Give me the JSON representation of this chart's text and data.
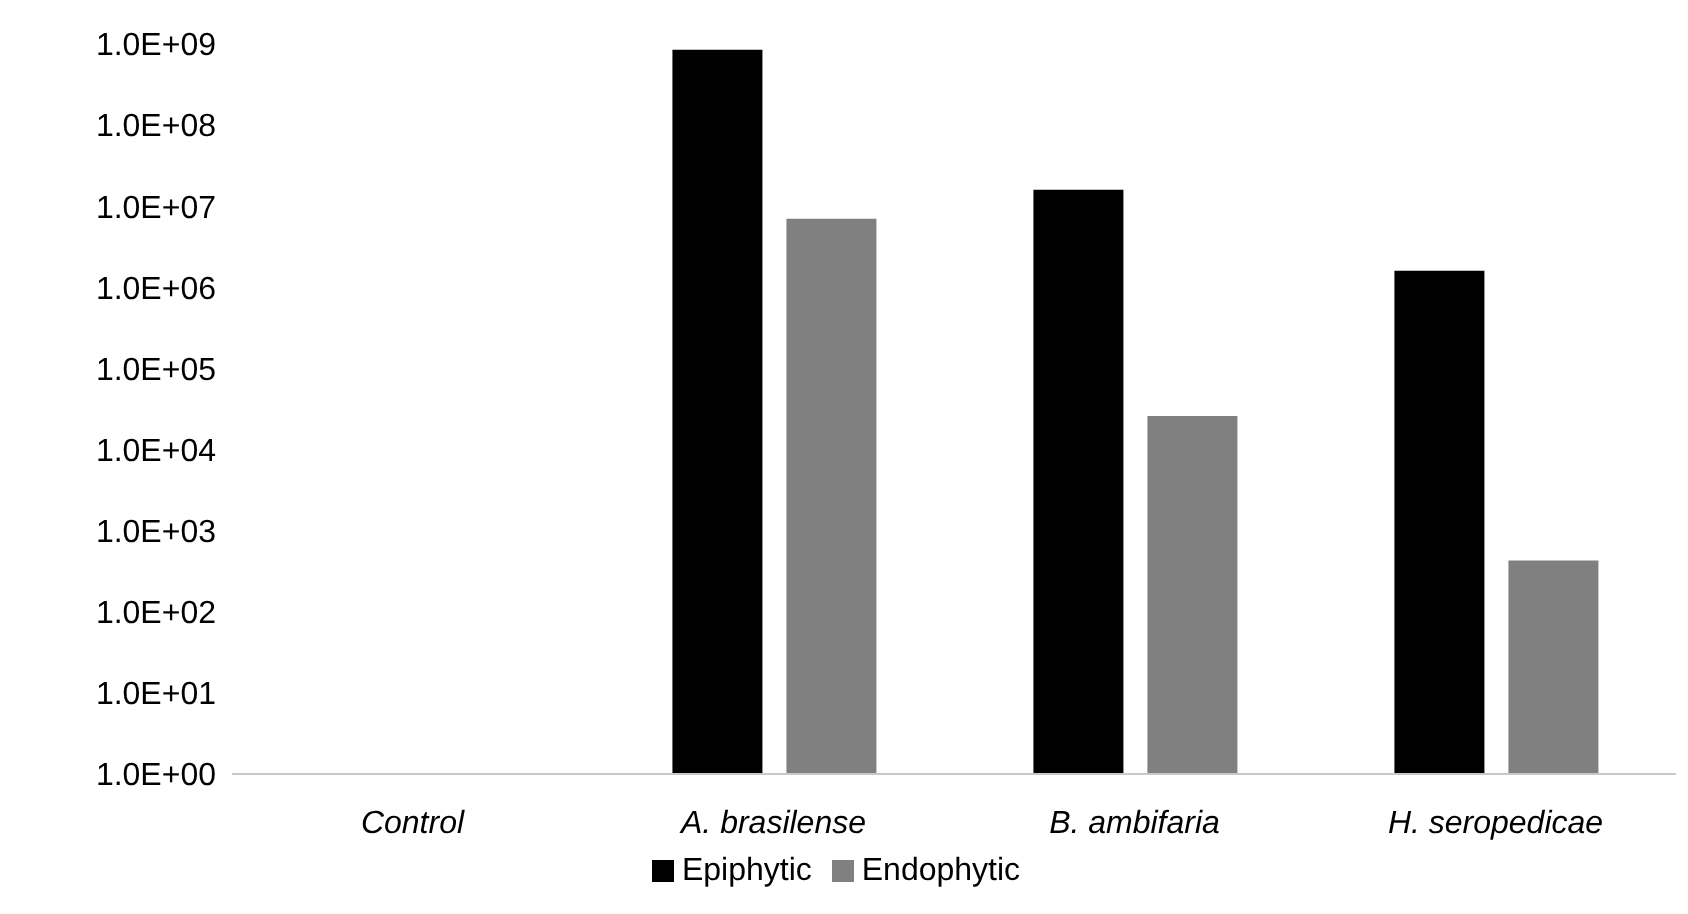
{
  "chart_data": {
    "type": "bar",
    "categories": [
      "Control",
      "A. brasilense",
      "B. ambifaria",
      "H. seropedicae"
    ],
    "series": [
      {
        "name": "Epiphytic",
        "color": "#000000",
        "values": [
          null,
          850000000,
          16000000,
          1600000
        ]
      },
      {
        "name": "Endophytic",
        "color": "#808080",
        "values": [
          null,
          7000000,
          26000,
          430
        ]
      }
    ],
    "log": "y",
    "ylim": [
      1,
      1000000000
    ],
    "yticks": [
      {
        "value": 1,
        "label": "1.0E+00"
      },
      {
        "value": 10,
        "label": "1.0E+01"
      },
      {
        "value": 100,
        "label": "1.0E+02"
      },
      {
        "value": 1000,
        "label": "1.0E+03"
      },
      {
        "value": 10000,
        "label": "1.0E+04"
      },
      {
        "value": 100000,
        "label": "1.0E+05"
      },
      {
        "value": 1000000,
        "label": "1.0E+06"
      },
      {
        "value": 10000000,
        "label": "1.0E+07"
      },
      {
        "value": 100000000,
        "label": "1.0E+08"
      },
      {
        "value": 1000000000,
        "label": "1.0E+09"
      }
    ],
    "grid": false,
    "legend": "bottom"
  }
}
